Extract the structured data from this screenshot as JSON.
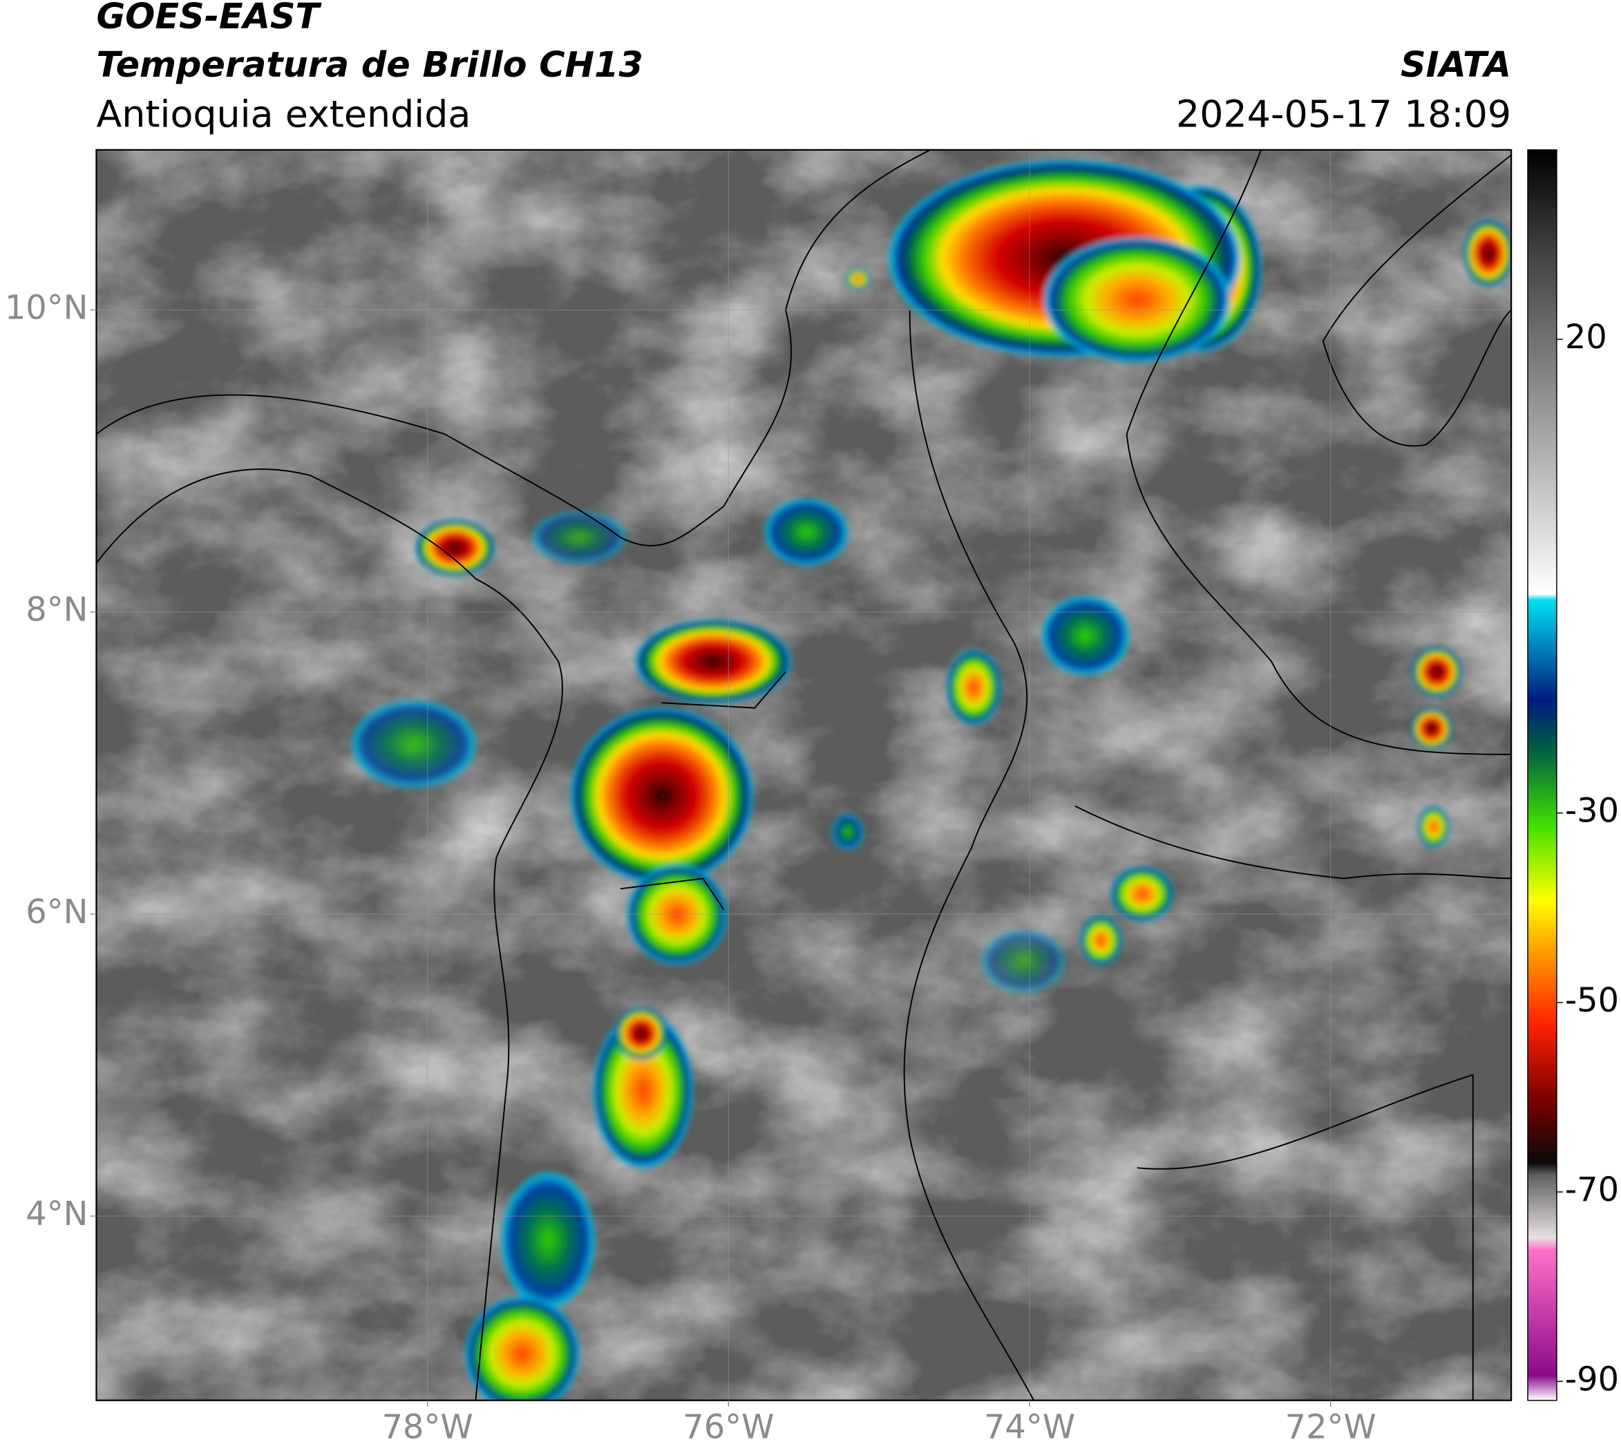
{
  "header": {
    "title": "GOES-EAST",
    "subtitle": "Temperatura de Brillo CH13",
    "region": "Antioquia extendida",
    "source": "SIATA",
    "datetime": "2024-05-17 18:09"
  },
  "map": {
    "xlim": [
      -80.2,
      -70.8
    ],
    "ylim": [
      2.78,
      11.06
    ],
    "xticks": [
      {
        "value": -78,
        "label": "78°W"
      },
      {
        "value": -76,
        "label": "76°W"
      },
      {
        "value": -74,
        "label": "74°W"
      },
      {
        "value": -72,
        "label": "72°W"
      }
    ],
    "yticks": [
      {
        "value": 4,
        "label": "4°N"
      },
      {
        "value": 6,
        "label": "6°N"
      },
      {
        "value": 8,
        "label": "8°N"
      },
      {
        "value": 10,
        "label": "10°N"
      }
    ],
    "grid": true
  },
  "colorbar": {
    "lim": [
      -92,
      40
    ],
    "ticks": [
      20,
      -30,
      -50,
      -70,
      -90
    ]
  }
}
